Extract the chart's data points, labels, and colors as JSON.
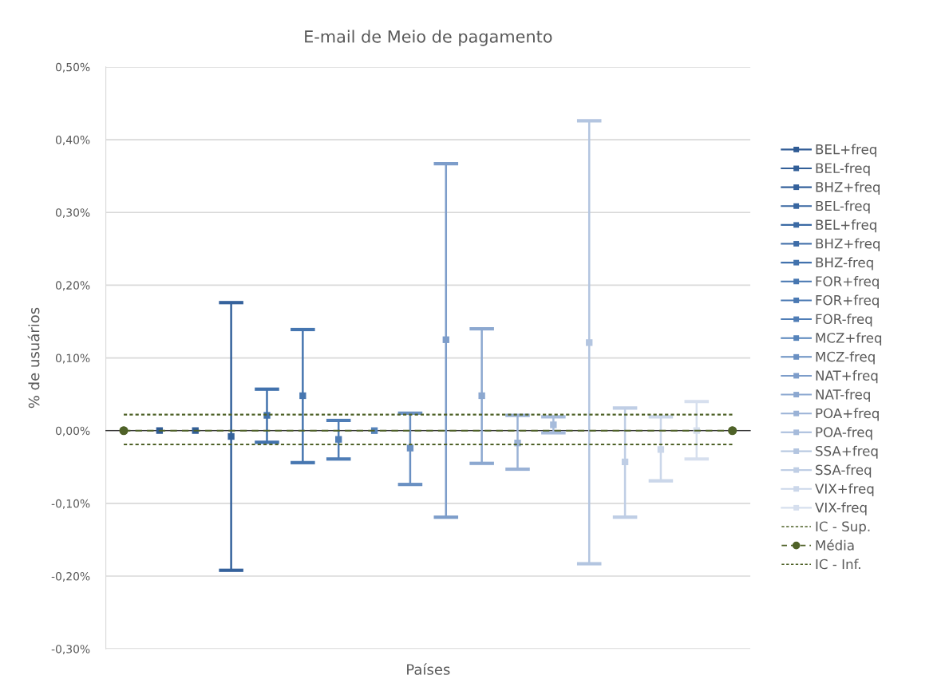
{
  "chart_data": {
    "type": "scatter",
    "title": "E-mail de Meio de pagamento",
    "xlabel": "Países",
    "ylabel": "% de usuários",
    "categories": [
      null,
      null,
      null,
      null,
      null,
      null,
      null,
      null,
      null,
      null,
      null,
      null,
      null,
      null,
      null,
      null,
      null,
      null
    ],
    "ylim": [
      -0.3,
      0.5
    ],
    "yticks": [
      {
        "value": -0.3,
        "label": "-0,30%"
      },
      {
        "value": -0.2,
        "label": "-0,20%"
      },
      {
        "value": -0.1,
        "label": "-0,10%"
      },
      {
        "value": 0,
        "label": "0,00%"
      },
      {
        "value": 0.1,
        "label": "0,10%"
      },
      {
        "value": 0.2,
        "label": "0,20%"
      },
      {
        "value": 0.3,
        "label": "0,30%"
      },
      {
        "value": 0.4,
        "label": "0,40%"
      },
      {
        "value": 0.5,
        "label": "0,50%"
      }
    ],
    "grid": "y",
    "legend": "right",
    "marker": "square",
    "series": [
      {
        "name": "BEL+freq",
        "color": "#2f5b94",
        "values": [
          null,
          0,
          null,
          null,
          null,
          null,
          null,
          null,
          null,
          null,
          null,
          null,
          null,
          null,
          null,
          null,
          null,
          null
        ]
      },
      {
        "name": "BEL-freq",
        "color": "#325f98",
        "values": [
          null,
          null,
          0,
          null,
          null,
          null,
          null,
          null,
          null,
          null,
          null,
          null,
          null,
          null,
          null,
          null,
          null,
          null
        ]
      },
      {
        "name": "BHZ+freq",
        "color": "#35629c",
        "values": [
          null,
          null,
          null,
          -0.008,
          null,
          null,
          null,
          null,
          null,
          null,
          null,
          null,
          null,
          null,
          null,
          null,
          null,
          null
        ],
        "errors": [
          null,
          null,
          null,
          [
            -0.192,
            0.176
          ],
          null,
          null,
          null,
          null,
          null,
          null,
          null,
          null,
          null,
          null,
          null,
          null,
          null,
          null
        ]
      },
      {
        "name": "BEL-freq",
        "color": "#3866a0",
        "values": [
          null,
          null,
          null,
          null,
          null,
          null,
          null,
          null,
          null,
          null,
          null,
          null,
          null,
          null,
          null,
          null,
          null,
          null
        ]
      },
      {
        "name": "BEL+freq",
        "color": "#3b6aa4",
        "values": [
          null,
          null,
          null,
          null,
          null,
          null,
          null,
          null,
          null,
          null,
          null,
          null,
          null,
          null,
          null,
          null,
          null,
          null
        ]
      },
      {
        "name": "BHZ+freq",
        "color": "#3e6da8",
        "values": [
          null,
          null,
          null,
          null,
          null,
          null,
          null,
          null,
          null,
          null,
          null,
          null,
          null,
          null,
          null,
          null,
          null,
          null
        ]
      },
      {
        "name": "BHZ-freq",
        "color": "#4272ad",
        "values": [
          null,
          null,
          null,
          null,
          0.021,
          null,
          null,
          null,
          null,
          null,
          null,
          null,
          null,
          null,
          null,
          null,
          null,
          null
        ],
        "errors": [
          null,
          null,
          null,
          null,
          [
            -0.016,
            0.057
          ],
          null,
          null,
          null,
          null,
          null,
          null,
          null,
          null,
          null,
          null,
          null,
          null,
          null
        ]
      },
      {
        "name": "FOR+freq",
        "color": "#4676b0",
        "values": [
          null,
          null,
          null,
          null,
          null,
          0.048,
          null,
          null,
          null,
          null,
          null,
          null,
          null,
          null,
          null,
          null,
          null,
          null
        ],
        "errors": [
          null,
          null,
          null,
          null,
          null,
          [
            -0.044,
            0.139
          ],
          null,
          null,
          null,
          null,
          null,
          null,
          null,
          null,
          null,
          null,
          null,
          null
        ]
      },
      {
        "name": "FOR+freq",
        "color": "#4a79b3",
        "values": [
          null,
          null,
          null,
          null,
          null,
          null,
          null,
          null,
          null,
          null,
          null,
          null,
          null,
          null,
          null,
          null,
          null,
          null
        ]
      },
      {
        "name": "FOR-freq",
        "color": "#4f7db6",
        "values": [
          null,
          null,
          null,
          null,
          null,
          null,
          -0.012,
          null,
          null,
          null,
          null,
          null,
          null,
          null,
          null,
          null,
          null,
          null
        ],
        "errors": [
          null,
          null,
          null,
          null,
          null,
          null,
          [
            -0.039,
            0.014
          ],
          null,
          null,
          null,
          null,
          null,
          null,
          null,
          null,
          null,
          null,
          null
        ]
      },
      {
        "name": "MCZ+freq",
        "color": "#5684bb",
        "values": [
          null,
          null,
          null,
          null,
          null,
          null,
          null,
          0,
          null,
          null,
          null,
          null,
          null,
          null,
          null,
          null,
          null,
          null
        ]
      },
      {
        "name": "MCZ-freq",
        "color": "#6a90c2",
        "values": [
          null,
          null,
          null,
          null,
          null,
          null,
          null,
          null,
          -0.024,
          null,
          null,
          null,
          null,
          null,
          null,
          null,
          null,
          null
        ],
        "errors": [
          null,
          null,
          null,
          null,
          null,
          null,
          null,
          null,
          [
            -0.074,
            0.024
          ],
          null,
          null,
          null,
          null,
          null,
          null,
          null,
          null,
          null
        ]
      },
      {
        "name": "NAT+freq",
        "color": "#7d9dca",
        "values": [
          null,
          null,
          null,
          null,
          null,
          null,
          null,
          null,
          null,
          0.125,
          null,
          null,
          null,
          null,
          null,
          null,
          null,
          null
        ],
        "errors": [
          null,
          null,
          null,
          null,
          null,
          null,
          null,
          null,
          null,
          [
            -0.119,
            0.367
          ],
          null,
          null,
          null,
          null,
          null,
          null,
          null,
          null
        ]
      },
      {
        "name": "NAT-freq",
        "color": "#8ca8d0",
        "values": [
          null,
          null,
          null,
          null,
          null,
          null,
          null,
          null,
          null,
          null,
          0.048,
          null,
          null,
          null,
          null,
          null,
          null,
          null
        ],
        "errors": [
          null,
          null,
          null,
          null,
          null,
          null,
          null,
          null,
          null,
          null,
          [
            -0.045,
            0.14
          ],
          null,
          null,
          null,
          null,
          null,
          null,
          null
        ]
      },
      {
        "name": "POA+freq",
        "color": "#9ab2d6",
        "values": [
          null,
          null,
          null,
          null,
          null,
          null,
          null,
          null,
          null,
          null,
          null,
          -0.017,
          null,
          null,
          null,
          null,
          null,
          null
        ],
        "errors": [
          null,
          null,
          null,
          null,
          null,
          null,
          null,
          null,
          null,
          null,
          null,
          [
            -0.053,
            0.021
          ],
          null,
          null,
          null,
          null,
          null,
          null
        ]
      },
      {
        "name": "POA-freq",
        "color": "#a6bbdb",
        "values": [
          null,
          null,
          null,
          null,
          null,
          null,
          null,
          null,
          null,
          null,
          null,
          null,
          0.008,
          null,
          null,
          null,
          null,
          null
        ],
        "errors": [
          null,
          null,
          null,
          null,
          null,
          null,
          null,
          null,
          null,
          null,
          null,
          null,
          [
            -0.003,
            0.019
          ],
          null,
          null,
          null,
          null,
          null
        ]
      },
      {
        "name": "SSA+freq",
        "color": "#b3c5e0",
        "values": [
          null,
          null,
          null,
          null,
          null,
          null,
          null,
          null,
          null,
          null,
          null,
          null,
          null,
          0.121,
          null,
          null,
          null,
          null
        ],
        "errors": [
          null,
          null,
          null,
          null,
          null,
          null,
          null,
          null,
          null,
          null,
          null,
          null,
          null,
          [
            -0.183,
            0.426
          ],
          null,
          null,
          null,
          null
        ]
      },
      {
        "name": "SSA-freq",
        "color": "#bfcee5",
        "values": [
          null,
          null,
          null,
          null,
          null,
          null,
          null,
          null,
          null,
          null,
          null,
          null,
          null,
          null,
          -0.043,
          null,
          null,
          null
        ],
        "errors": [
          null,
          null,
          null,
          null,
          null,
          null,
          null,
          null,
          null,
          null,
          null,
          null,
          null,
          null,
          [
            -0.119,
            0.031
          ],
          null,
          null,
          null
        ]
      },
      {
        "name": "VIX+freq",
        "color": "#cbd7ea",
        "values": [
          null,
          null,
          null,
          null,
          null,
          null,
          null,
          null,
          null,
          null,
          null,
          null,
          null,
          null,
          null,
          -0.026,
          null,
          null
        ],
        "errors": [
          null,
          null,
          null,
          null,
          null,
          null,
          null,
          null,
          null,
          null,
          null,
          null,
          null,
          null,
          null,
          [
            -0.069,
            0.019
          ],
          null,
          null
        ]
      },
      {
        "name": "VIX-freq",
        "color": "#d6dfee",
        "values": [
          null,
          null,
          null,
          null,
          null,
          null,
          null,
          null,
          null,
          null,
          null,
          null,
          null,
          null,
          null,
          null,
          0,
          null
        ],
        "errors": [
          null,
          null,
          null,
          null,
          null,
          null,
          null,
          null,
          null,
          null,
          null,
          null,
          null,
          null,
          null,
          null,
          [
            -0.039,
            0.04
          ],
          null
        ]
      },
      {
        "name": "IC - Sup.",
        "type": "line",
        "color": "#4f6228",
        "line_style": "dotted",
        "marker": "none",
        "values": [
          0.022,
          null,
          null,
          null,
          null,
          null,
          null,
          null,
          null,
          null,
          null,
          null,
          null,
          null,
          null,
          null,
          null,
          0.022
        ]
      },
      {
        "name": "Média",
        "type": "line",
        "color": "#4f6228",
        "line_style": "dashed",
        "marker": "circle",
        "values": [
          0,
          null,
          null,
          null,
          null,
          null,
          null,
          null,
          null,
          null,
          null,
          null,
          null,
          null,
          null,
          null,
          null,
          0
        ]
      },
      {
        "name": "IC - Inf.",
        "type": "line",
        "color": "#4f6228",
        "line_style": "dotted",
        "marker": "none",
        "values": [
          -0.019,
          null,
          null,
          null,
          null,
          null,
          null,
          null,
          null,
          null,
          null,
          null,
          null,
          null,
          null,
          null,
          null,
          -0.019
        ]
      }
    ]
  }
}
